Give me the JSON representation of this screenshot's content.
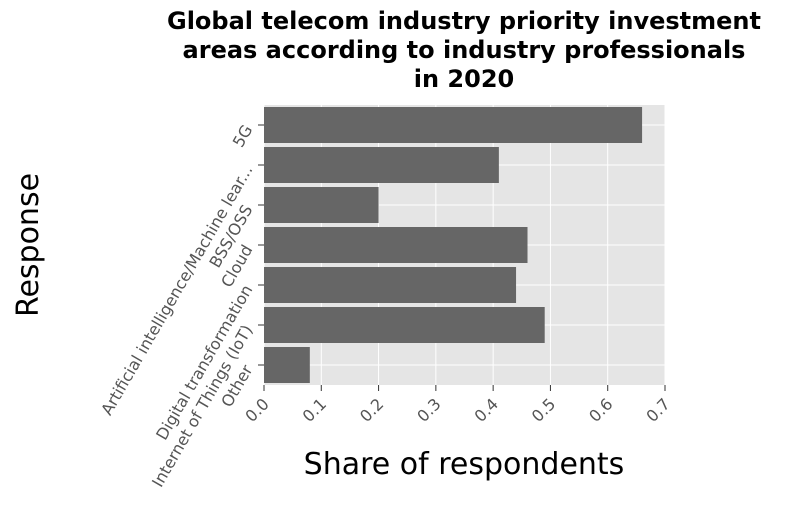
{
  "chart_data": {
    "type": "bar",
    "orientation": "horizontal",
    "title_lines": [
      "Global telecom industry priority investment",
      "areas according to industry professionals",
      "in 2020"
    ],
    "xlabel": "Share of respondents",
    "ylabel": "Response",
    "categories": [
      "5G",
      "Artificial intelligence/Machine lear...",
      "BSS/OSS",
      "Cloud",
      "Digital transformation",
      "Internet of Things (IoT)",
      "Other"
    ],
    "values": [
      0.66,
      0.41,
      0.2,
      0.46,
      0.44,
      0.49,
      0.08
    ],
    "xlim": [
      0,
      0.7
    ],
    "xticks": [
      "0.0",
      "0.1",
      "0.2",
      "0.3",
      "0.4",
      "0.5",
      "0.6",
      "0.7"
    ],
    "grid": true,
    "colors": {
      "bar": "#666666",
      "plot_background": "#e5e5e5",
      "grid": "#ffffff"
    }
  }
}
